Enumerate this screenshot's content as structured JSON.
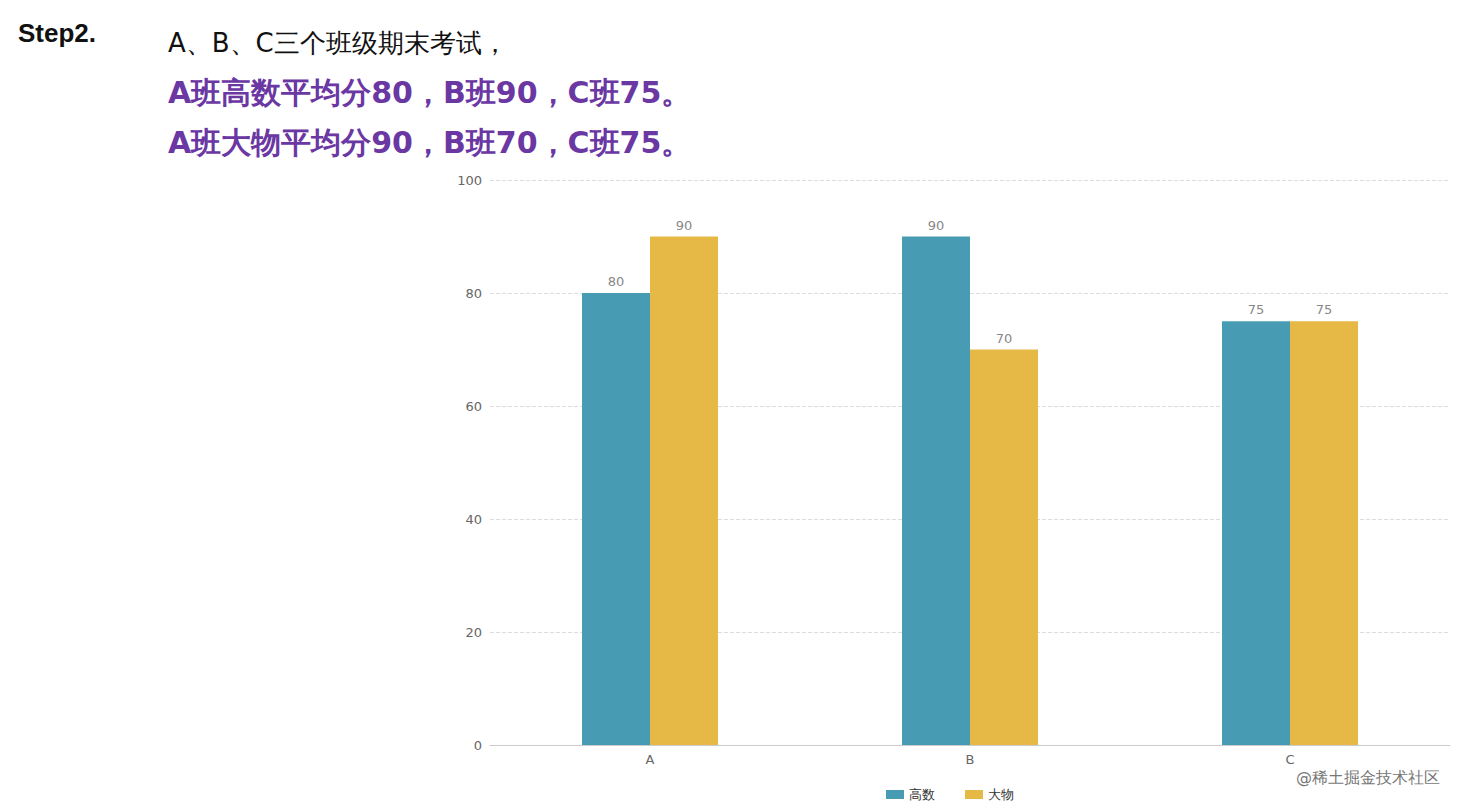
{
  "header": {
    "step": "Step2.",
    "lines": [
      "A、B、C三个班级期末考试，",
      "A班高数平均分80，B班90，C班75。",
      "A班大物平均分90，B班70，C班75。"
    ]
  },
  "chart_data": {
    "type": "bar",
    "categories": [
      "A",
      "B",
      "C"
    ],
    "series": [
      {
        "name": "高数",
        "color": "#479cb3",
        "values": [
          80,
          90,
          75
        ]
      },
      {
        "name": "大物",
        "color": "#e6b946",
        "values": [
          90,
          70,
          75
        ]
      }
    ],
    "ylim": [
      0,
      100
    ],
    "yticks": [
      0,
      20,
      40,
      60,
      80,
      100
    ],
    "grid": true,
    "data_labels": true,
    "legend": "bottom"
  },
  "footer": "@稀土掘金技术社区"
}
